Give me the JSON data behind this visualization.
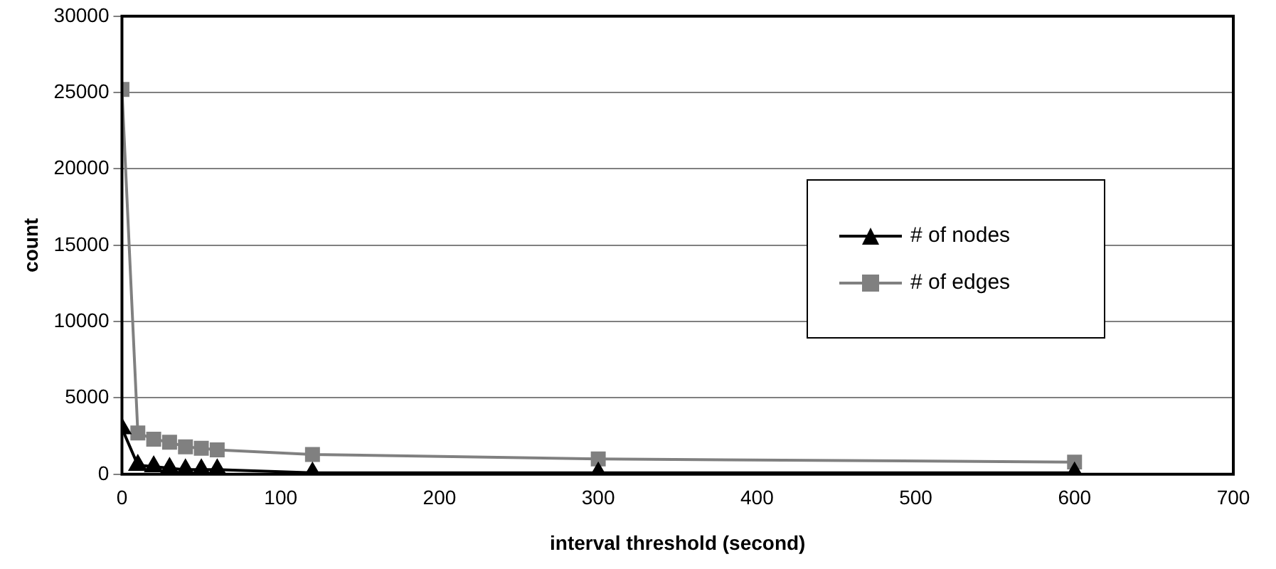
{
  "chart_data": {
    "type": "line",
    "xlabel": "interval threshold (second)",
    "ylabel": "count",
    "x": [
      0,
      10,
      20,
      30,
      40,
      50,
      60,
      120,
      300,
      600
    ],
    "series": [
      {
        "name": "# of nodes",
        "color": "#000000",
        "marker": "triangle",
        "values": [
          3000,
          600,
          500,
          400,
          300,
          300,
          300,
          100,
          100,
          100
        ]
      },
      {
        "name": "# of edges",
        "color": "#808080",
        "marker": "square",
        "values": [
          25200,
          2700,
          2300,
          2100,
          1800,
          1700,
          1600,
          1300,
          1000,
          800
        ]
      }
    ],
    "xlim": [
      0,
      700
    ],
    "xticks": [
      0,
      100,
      200,
      300,
      400,
      500,
      600,
      700
    ],
    "ylim": [
      0,
      30000
    ],
    "yticks": [
      0,
      5000,
      10000,
      15000,
      20000,
      25000,
      30000
    ],
    "grid": "y",
    "legend": "right"
  }
}
